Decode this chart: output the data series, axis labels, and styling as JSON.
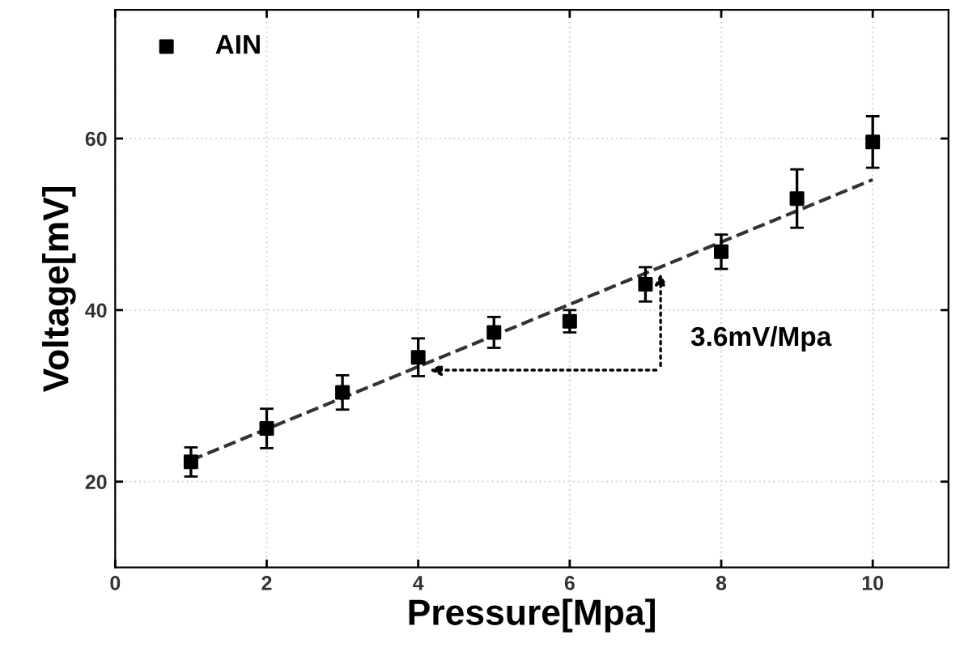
{
  "chart_data": {
    "type": "scatter",
    "xlabel": "Pressure[Mpa]",
    "ylabel": "Voltage[mV]",
    "x": [
      1,
      2,
      3,
      4,
      5,
      6,
      7,
      8,
      9,
      10
    ],
    "series": [
      {
        "name": "AIN",
        "color": "#000000",
        "marker": "square",
        "values": [
          22.3,
          26.2,
          30.4,
          34.5,
          37.4,
          38.7,
          43.0,
          46.8,
          53.0,
          59.6
        ],
        "errors": [
          1.7,
          2.3,
          2.0,
          2.2,
          1.8,
          1.3,
          2.0,
          2.0,
          3.4,
          3.0
        ]
      },
      {
        "type": "line",
        "color": "#333333",
        "line_style": "dashed",
        "marker": "none",
        "x": [
          1,
          10
        ],
        "values": [
          22.5,
          55.2
        ]
      }
    ],
    "annotations": [
      "3.6mV/Mpa"
    ],
    "xlim": [
      0,
      11
    ],
    "xticks": [
      0,
      2,
      4,
      6,
      8,
      10
    ],
    "ylim": [
      10,
      75
    ],
    "yticks": [
      20,
      40,
      60
    ],
    "grid": true,
    "legend": "top left"
  }
}
